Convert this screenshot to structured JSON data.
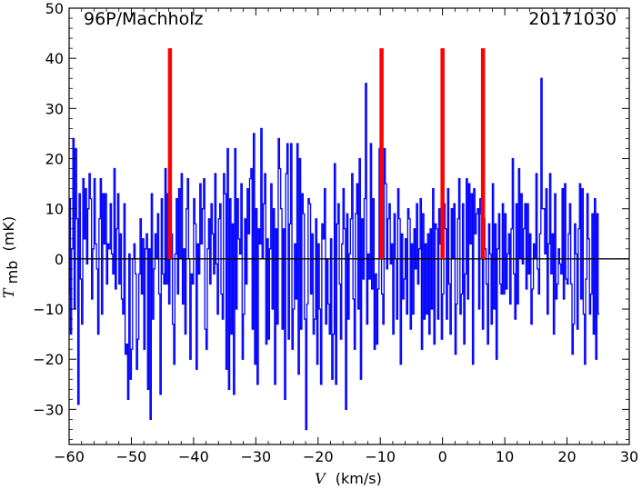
{
  "chart_data": {
    "type": "line",
    "subtype": "step",
    "annotations": {
      "left": "96P/Machholz",
      "right": "20171030"
    },
    "xlabel": {
      "symbol": "V",
      "unit": "(km/s)"
    },
    "ylabel": {
      "symbol": "T",
      "subscript": "mb",
      "unit": "(mK)"
    },
    "xlim": [
      -60,
      30
    ],
    "ylim": [
      -37,
      50
    ],
    "xticks": [
      -60,
      -50,
      -40,
      -30,
      -20,
      -10,
      0,
      10,
      20,
      30
    ],
    "yticks": [
      -30,
      -20,
      -10,
      0,
      10,
      20,
      30,
      40,
      50
    ],
    "tick_labels_x": [
      "−60",
      "−50",
      "−40",
      "−30",
      "−20",
      "−10",
      "0",
      "10",
      "20",
      "30"
    ],
    "tick_labels_y": [
      "−30",
      "−20",
      "−10",
      "0",
      "10",
      "20",
      "30",
      "40",
      "50"
    ],
    "grid": false,
    "zero_line": 0,
    "series": [
      {
        "color": "#0000ff",
        "x_start": -60.2,
        "x_step": 0.2,
        "values": [
          -7,
          12,
          -15,
          2,
          24,
          -10,
          22,
          8,
          -29,
          13,
          -4,
          -13,
          16,
          4,
          14,
          -1,
          10,
          17,
          12,
          -8,
          2,
          16,
          3,
          -2,
          -15,
          8,
          16,
          -11,
          13,
          3,
          13,
          -5,
          3,
          2,
          11,
          1,
          -3,
          18,
          -6,
          6,
          13,
          -5,
          5,
          -8,
          -11,
          11,
          -19,
          -17,
          -28,
          1,
          -24,
          -18,
          0,
          3,
          -3,
          -22,
          -16,
          -3,
          8,
          -7,
          4,
          -18,
          2,
          5,
          -26,
          2,
          -32,
          13,
          -12,
          -2,
          5,
          0,
          9,
          -7,
          -27,
          12,
          -3,
          -5,
          18,
          -5,
          13,
          -9,
          14,
          5,
          -13,
          -21,
          1,
          12,
          -7,
          14,
          0,
          17,
          -9,
          2,
          -15,
          10,
          16,
          0,
          -20,
          -3,
          -5,
          12,
          7,
          -22,
          3,
          -3,
          15,
          3,
          10,
          16,
          -14,
          -18,
          2,
          8,
          -5,
          11,
          5,
          -3,
          17,
          -1,
          -11,
          8,
          11,
          -7,
          -12,
          17,
          13,
          -22,
          22,
          -26,
          12,
          -15,
          7,
          -27,
          22,
          -10,
          12,
          4,
          1,
          15,
          -20,
          -11,
          8,
          -5,
          14,
          5,
          16,
          18,
          -14,
          25,
          -21,
          10,
          -25,
          6,
          3,
          26,
          0,
          11,
          17,
          -17,
          4,
          -16,
          2,
          15,
          -10,
          10,
          -25,
          6,
          -13,
          24,
          18,
          10,
          -14,
          6,
          -28,
          17,
          23,
          -16,
          7,
          23,
          -18,
          -10,
          3,
          -8,
          23,
          -23,
          20,
          -14,
          13,
          9,
          -12,
          -34,
          -9,
          12,
          11,
          -7,
          5,
          -15,
          -12,
          8,
          -21,
          3,
          -10,
          -25,
          7,
          4,
          14,
          -13,
          0,
          -9,
          -15,
          4,
          -24,
          -15,
          19,
          -25,
          7,
          11,
          -5,
          -16,
          3,
          14,
          6,
          -30,
          9,
          -12,
          1,
          8,
          17,
          -8,
          -18,
          9,
          15,
          -10,
          20,
          -24,
          8,
          -4,
          12,
          35,
          -13,
          1,
          -4,
          23,
          -6,
          12,
          -18,
          -3,
          -17,
          -6,
          22,
          16,
          -7,
          -13,
          22,
          15,
          -2,
          8,
          11,
          -1,
          3,
          -15,
          9,
          0,
          -12,
          14,
          8,
          -21,
          5,
          -8,
          -4,
          4,
          -11,
          10,
          8,
          -14,
          3,
          -11,
          6,
          -2,
          11,
          -5,
          2,
          12,
          -18,
          9,
          -12,
          3,
          -11,
          5,
          -15,
          6,
          -10,
          14,
          -17,
          7,
          6,
          -12,
          10,
          3,
          -16,
          -7,
          11,
          6,
          -12,
          14,
          -5,
          -15,
          10,
          0,
          11,
          -19,
          -9,
          8,
          16,
          -11,
          -7,
          11,
          -17,
          -3,
          16,
          -8,
          15,
          3,
          13,
          -21,
          14,
          5,
          9,
          10,
          -10,
          12,
          9,
          -14,
          8,
          2,
          -5,
          -17,
          7,
          1,
          -13,
          15,
          -10,
          7,
          -20,
          2,
          9,
          -5,
          -7,
          11,
          -7,
          9,
          -6,
          1,
          5,
          -9,
          6,
          20,
          -3,
          -12,
          11,
          -9,
          18,
          0,
          13,
          -1,
          6,
          11,
          -6,
          11,
          -3,
          5,
          -13,
          -6,
          3,
          0,
          17,
          -2,
          -7,
          5,
          36,
          10,
          10,
          1,
          14,
          -11,
          3,
          17,
          -3,
          5,
          -15,
          13,
          -8,
          -5,
          2,
          -1,
          -3,
          14,
          -8,
          15,
          -4,
          -5,
          5,
          11,
          -5,
          -19,
          -13,
          7,
          1,
          -14,
          6,
          15,
          -8,
          14,
          -11,
          -21,
          -4,
          13,
          4,
          -11,
          -7,
          9,
          -15,
          12,
          -20,
          9,
          -11
        ]
      }
    ],
    "markers": {
      "color": "#ff0000",
      "x": [
        -43.8,
        -9.8,
        0.0,
        6.5
      ],
      "y_from": 0,
      "y_to": 42
    }
  }
}
